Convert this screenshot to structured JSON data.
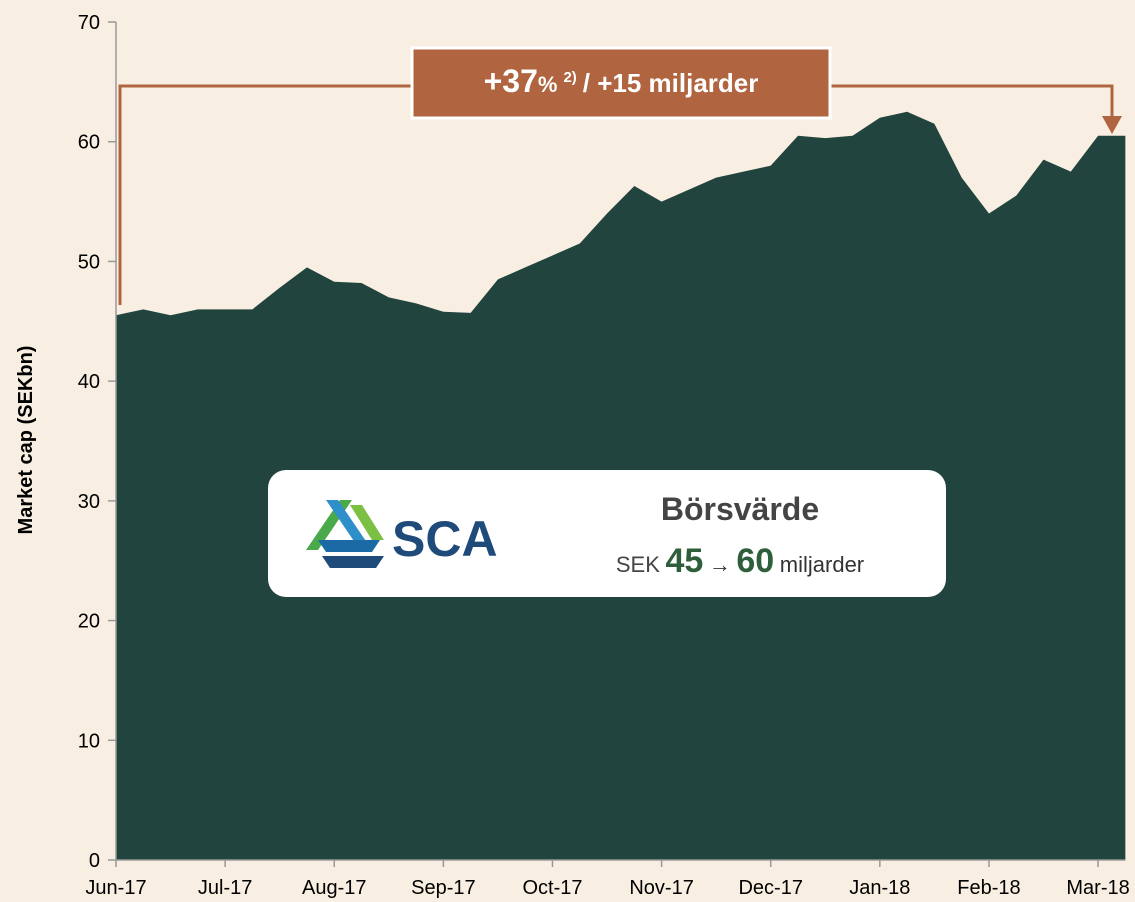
{
  "chart_data": {
    "type": "area",
    "ylabel": "Market cap (SEKbn)",
    "categories": [
      "Jun-17",
      null,
      null,
      null,
      "Jul-17",
      null,
      null,
      null,
      "Aug-17",
      null,
      null,
      null,
      "Sep-17",
      null,
      null,
      null,
      "Oct-17",
      null,
      null,
      null,
      "Nov-17",
      null,
      null,
      null,
      "Dec-17",
      null,
      null,
      null,
      "Jan-18",
      null,
      null,
      null,
      "Feb-18",
      null,
      null,
      null,
      "Mar-18",
      null
    ],
    "values": [
      45.5,
      46,
      45.5,
      46,
      46,
      46,
      47.8,
      49.5,
      48.3,
      48.2,
      47,
      46.5,
      45.8,
      45.7,
      48.5,
      49.5,
      50.5,
      51.5,
      54,
      56.3,
      55,
      56,
      57,
      57.5,
      58,
      60.5,
      60.3,
      60.5,
      62,
      62.5,
      61.5,
      57,
      54,
      55.5,
      58.5,
      57.5,
      60.5,
      60.5
    ],
    "color": "#22443f",
    "ylim": [
      0,
      70
    ],
    "yticks": [
      0,
      10,
      20,
      30,
      40,
      50,
      60,
      70
    ],
    "grid": false,
    "annotation": {
      "main": "+37",
      "unit": "%",
      "note": "2)",
      "rest": "/ +15 miljarder",
      "color": "#b0643f"
    },
    "info_box": {
      "logo": "SCA",
      "title": "Börsvärde",
      "prefix": "SEK",
      "from": "45",
      "arrow": "→",
      "to": "60",
      "suffix": "miljarder"
    }
  }
}
